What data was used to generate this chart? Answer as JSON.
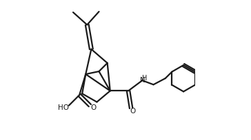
{
  "line_color": "#1a1a1a",
  "line_width": 1.6,
  "fig_width": 3.64,
  "fig_height": 2.04,
  "dpi": 100,
  "xlim": [
    0.0,
    1.0
  ],
  "ylim": [
    0.0,
    1.0
  ]
}
